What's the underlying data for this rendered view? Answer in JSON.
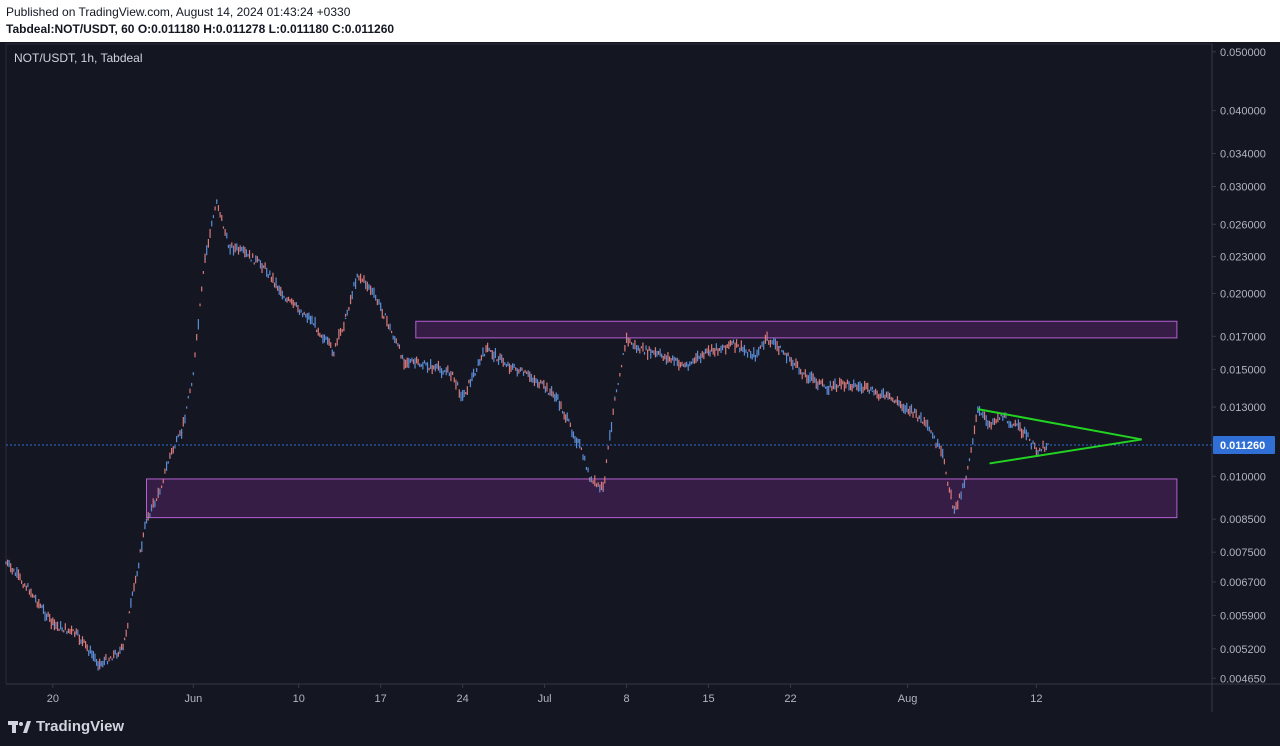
{
  "header": {
    "published": "Published on TradingView.com, August 14, 2024 01:43:24 +0330",
    "symbol_prefix": "Tabdeal:NOT/USDT, 60",
    "o": "O:0.011180",
    "h": "H:0.011278",
    "l": "L:0.011180",
    "c": "C:0.011260"
  },
  "chart_label": "NOT/USDT, 1h, Tabdeal",
  "brand": "TradingView",
  "colors": {
    "background": "#141622",
    "candle_up": "#5b8ed6",
    "candle_down": "#d97a7a",
    "zone_fill": "#7b2f8e",
    "zone_stroke": "#b45fd0",
    "triangle": "#22d321",
    "price_line": "#2f6fd6",
    "price_badge": "#2f6fd6"
  },
  "chart_data": {
    "type": "line",
    "title": "NOT/USDT, 1h, Tabdeal",
    "y_scale": "log",
    "ylim": [
      0.00455,
      0.0515
    ],
    "y_ticks": [
      "0.050000",
      "0.040000",
      "0.034000",
      "0.030000",
      "0.026000",
      "0.023000",
      "0.020000",
      "0.017000",
      "0.015000",
      "0.013000",
      "0.011260",
      "0.010000",
      "0.008500",
      "0.007500",
      "0.006700",
      "0.005900",
      "0.005200",
      "0.004650"
    ],
    "x_ticks": [
      "20",
      "Jun",
      "10",
      "17",
      "24",
      "Jul",
      "8",
      "15",
      "22",
      "Aug",
      "12"
    ],
    "x_tick_dates": [
      "2024-05-20",
      "2024-06-01",
      "2024-06-10",
      "2024-06-17",
      "2024-06-24",
      "2024-07-01",
      "2024-07-08",
      "2024-07-15",
      "2024-07-22",
      "2024-08-01",
      "2024-08-12"
    ],
    "xlim": [
      "2024-05-16",
      "2024-08-27"
    ],
    "last_price": "0.011260",
    "series": [
      {
        "x": [
          "2024-05-16",
          "2024-05-18",
          "2024-05-20",
          "2024-05-22",
          "2024-05-24",
          "2024-05-26",
          "2024-05-28",
          "2024-05-29",
          "2024-05-30",
          "2024-05-31",
          "2024-06-01",
          "2024-06-02",
          "2024-06-03",
          "2024-06-04",
          "2024-06-05",
          "2024-06-07",
          "2024-06-09",
          "2024-06-11",
          "2024-06-13",
          "2024-06-14",
          "2024-06-15",
          "2024-06-16",
          "2024-06-17",
          "2024-06-19",
          "2024-06-21",
          "2024-06-23",
          "2024-06-24",
          "2024-06-26",
          "2024-06-28",
          "2024-06-30",
          "2024-07-02",
          "2024-07-04",
          "2024-07-05",
          "2024-07-06",
          "2024-07-07",
          "2024-07-08",
          "2024-07-09",
          "2024-07-11",
          "2024-07-13",
          "2024-07-15",
          "2024-07-17",
          "2024-07-19",
          "2024-07-20",
          "2024-07-21",
          "2024-07-23",
          "2024-07-25",
          "2024-07-27",
          "2024-07-29",
          "2024-07-31",
          "2024-08-02",
          "2024-08-03",
          "2024-08-04",
          "2024-08-05",
          "2024-08-06",
          "2024-08-07",
          "2024-08-08",
          "2024-08-09",
          "2024-08-11",
          "2024-08-12",
          "2024-08-13"
        ],
        "values": [
          0.0072,
          0.0065,
          0.0057,
          0.0055,
          0.0049,
          0.0052,
          0.0085,
          0.0093,
          0.0108,
          0.0118,
          0.0148,
          0.0228,
          0.0285,
          0.024,
          0.0235,
          0.0222,
          0.0195,
          0.0182,
          0.016,
          0.0182,
          0.0215,
          0.0205,
          0.019,
          0.0155,
          0.0152,
          0.0148,
          0.0135,
          0.0162,
          0.0152,
          0.0145,
          0.0135,
          0.0112,
          0.0098,
          0.0095,
          0.0135,
          0.0168,
          0.0162,
          0.0158,
          0.0152,
          0.016,
          0.0165,
          0.0158,
          0.0168,
          0.0163,
          0.0148,
          0.014,
          0.0142,
          0.0138,
          0.0133,
          0.0125,
          0.0118,
          0.0108,
          0.0087,
          0.01,
          0.0128,
          0.0122,
          0.0126,
          0.0118,
          0.011,
          0.0113
        ]
      }
    ]
  }
}
